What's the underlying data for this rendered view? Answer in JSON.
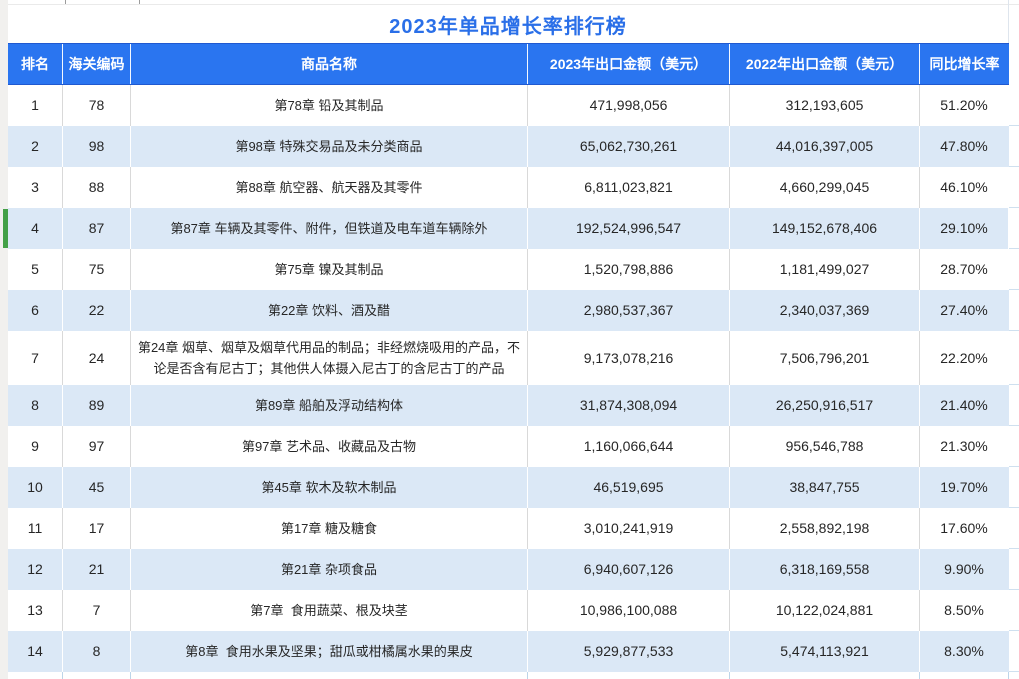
{
  "title": "2023年单品增长率排行榜",
  "accent_colors": {
    "header_bg": "#2A75F0",
    "alt_row_bg": "#DBE8F6",
    "title_text": "#2A6FE8",
    "selected_marker_green": "#43A047"
  },
  "chart_data": {
    "type": "table",
    "title": "2023年单品增长率排行榜",
    "columns": [
      "排名",
      "海关编码",
      "商品名称",
      "2023年出口金额（美元）",
      "2022年出口金额（美元）",
      "同比增长率"
    ],
    "rows": [
      [
        "1",
        "78",
        "第78章 铅及其制品",
        "471,998,056",
        "312,193,605",
        "51.20%"
      ],
      [
        "2",
        "98",
        "第98章 特殊交易品及未分类商品",
        "65,062,730,261",
        "44,016,397,005",
        "47.80%"
      ],
      [
        "3",
        "88",
        "第88章 航空器、航天器及其零件",
        "6,811,023,821",
        "4,660,299,045",
        "46.10%"
      ],
      [
        "4",
        "87",
        "第87章 车辆及其零件、附件，但铁道及电车道车辆除外",
        "192,524,996,547",
        "149,152,678,406",
        "29.10%"
      ],
      [
        "5",
        "75",
        "第75章 镍及其制品",
        "1,520,798,886",
        "1,181,499,027",
        "28.70%"
      ],
      [
        "6",
        "22",
        "第22章 饮料、酒及醋",
        "2,980,537,367",
        "2,340,037,369",
        "27.40%"
      ],
      [
        "7",
        "24",
        "第24章 烟草、烟草及烟草代用品的制品；非经燃烧吸用的产品，不论是否含有尼古丁；其他供人体摄入尼古丁的含尼古丁的产品",
        "9,173,078,216",
        "7,506,796,201",
        "22.20%"
      ],
      [
        "8",
        "89",
        "第89章 船舶及浮动结构体",
        "31,874,308,094",
        "26,250,916,517",
        "21.40%"
      ],
      [
        "9",
        "97",
        "第97章 艺术品、收藏品及古物",
        "1,160,066,644",
        "956,546,788",
        "21.30%"
      ],
      [
        "10",
        "45",
        "第45章 软木及软木制品",
        "46,519,695",
        "38,847,755",
        "19.70%"
      ],
      [
        "11",
        "17",
        "第17章 糖及糖食",
        "3,010,241,919",
        "2,558,892,198",
        "17.60%"
      ],
      [
        "12",
        "21",
        "第21章 杂项食品",
        "6,940,607,126",
        "6,318,169,558",
        "9.90%"
      ],
      [
        "13",
        "7",
        "第7章  食用蔬菜、根及块茎",
        "10,986,100,088",
        "10,122,024,881",
        "8.50%"
      ],
      [
        "14",
        "8",
        "第8章  食用水果及坚果；甜瓜或柑橘属水果的果皮",
        "5,929,877,533",
        "5,474,113,921",
        "8.30%"
      ]
    ],
    "selected_row_rank": "4"
  }
}
